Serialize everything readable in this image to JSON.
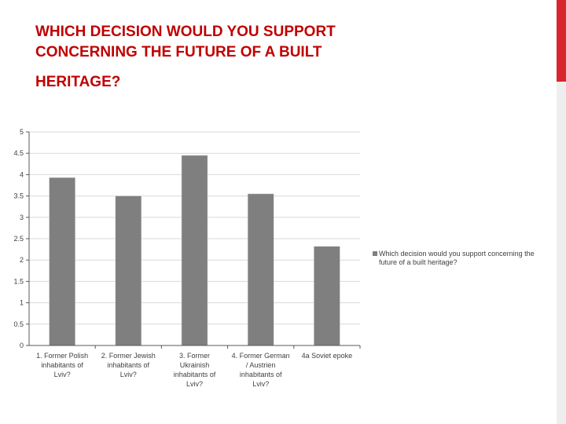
{
  "slide": {
    "title_line1": "WHICH DECISION WOULD YOU SUPPORT",
    "title_line2": "CONCERNING THE FUTURE OF A BUILT",
    "title_line3": "HERITAGE?"
  },
  "colors": {
    "title": "#c00000",
    "accent": "#d9252c",
    "bar": "#7f7f7f",
    "grid": "#d9d9d9",
    "axis": "#595959"
  },
  "chart_data": {
    "type": "bar",
    "categories": [
      [
        "1. Former Polish",
        "inhabitants of",
        "Lviv?"
      ],
      [
        "2. Former Jewish",
        "inhabitants of",
        "Lviv?"
      ],
      [
        "3. Former",
        "Ukrainish",
        "inhabitants of",
        "Lviv?"
      ],
      [
        "4. Former German",
        "/ Austrien",
        "inhabitants of",
        "Lviv?"
      ],
      [
        "4a Soviet epoke"
      ]
    ],
    "series": [
      {
        "name": "Which decision would you support concerning the future of a built heritage?",
        "values": [
          3.93,
          3.5,
          4.45,
          3.55,
          2.32
        ]
      }
    ],
    "yticks": [
      "0",
      "0.5",
      "1",
      "1.5",
      "2",
      "2.5",
      "3",
      "3.5",
      "4",
      "4.5",
      "5"
    ],
    "ylim": [
      0,
      5
    ],
    "grid": true,
    "legend_position": "right"
  }
}
